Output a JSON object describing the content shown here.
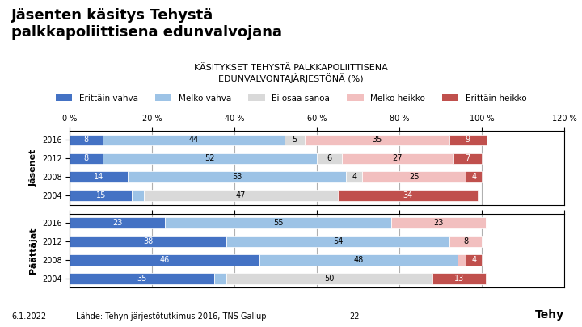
{
  "title": "Jäsenten käsitys Tehystä\npalkkapoliittisena edunvalvojana",
  "subtitle": "KÄSITYKSET TEHYSTÄ PALKKAPOLIITTISENA\nEDUNVALVONTAJÄRJESTÖNÄ (%)",
  "annotations": [
    "6.1.2022",
    "Lähde: Tehyn järjestötutkimus 2016, TNS Gallup",
    "22",
    "Tehy"
  ],
  "chart_data": [
    {
      "type": "bar",
      "orientation": "horizontal",
      "stacked": true,
      "title": "Jäsenet",
      "categories": [
        "2016",
        "2012",
        "2008",
        "2004"
      ],
      "xlim": [
        0,
        120
      ],
      "xticks": [
        {
          "value": 0,
          "label": "0 %"
        },
        {
          "value": 20,
          "label": "20 %"
        },
        {
          "value": 40,
          "label": "40 %"
        },
        {
          "value": 60,
          "label": "60 %"
        },
        {
          "value": 80,
          "label": "80 %"
        },
        {
          "value": 100,
          "label": "100 %"
        },
        {
          "value": 120,
          "label": "120 %"
        }
      ],
      "grid": true,
      "legend": "upper center",
      "data_labels": true,
      "series": [
        {
          "name": "Erittäin vahva",
          "color": "#4472C4",
          "values": [
            8,
            8,
            14,
            15
          ],
          "value_labels": [
            "8",
            "8",
            "14",
            "15"
          ]
        },
        {
          "name": "Melko vahva",
          "color": "#9DC3E6",
          "values": [
            44,
            52,
            53,
            3
          ],
          "value_labels": [
            "44",
            "52",
            "53",
            null
          ]
        },
        {
          "name": "Ei osaa sanoa",
          "color": "#D9D9D9",
          "values": [
            5,
            6,
            4,
            47
          ],
          "value_labels": [
            "5",
            "6",
            "4",
            "47"
          ]
        },
        {
          "name": "Melko heikko",
          "color": "#F2BFBF",
          "values": [
            35,
            27,
            25,
            0
          ],
          "value_labels": [
            "35",
            "27",
            "25",
            null
          ]
        },
        {
          "name": "Erittäin heikko",
          "color": "#C0504D",
          "values": [
            9,
            7,
            4,
            34
          ],
          "value_labels": [
            "9",
            "7",
            "4",
            "34"
          ]
        }
      ]
    },
    {
      "type": "bar",
      "orientation": "horizontal",
      "stacked": true,
      "title": "Päättäjat",
      "categories": [
        "2016",
        "2012",
        "2008",
        "2004"
      ],
      "xlim": [
        0,
        120
      ],
      "xticks": [
        {
          "value": 0,
          "label": "0 %"
        },
        {
          "value": 20,
          "label": "20 %"
        },
        {
          "value": 40,
          "label": "40 %"
        },
        {
          "value": 60,
          "label": "60 %"
        },
        {
          "value": 80,
          "label": "80 %"
        },
        {
          "value": 100,
          "label": "100 %"
        },
        {
          "value": 120,
          "label": "120 %"
        }
      ],
      "grid": true,
      "data_labels": true,
      "tick_labels": "y",
      "series": [
        {
          "name": "Erittäin vahva",
          "color": "#4472C4",
          "values": [
            23,
            38,
            46,
            35
          ],
          "value_labels": [
            "23",
            "38",
            "46",
            "35"
          ]
        },
        {
          "name": "Melko vahva",
          "color": "#9DC3E6",
          "values": [
            55,
            54,
            48,
            3
          ],
          "value_labels": [
            "55",
            "54",
            "48",
            null
          ]
        },
        {
          "name": "Ei osaa sanoa",
          "color": "#D9D9D9",
          "values": [
            0,
            0,
            0,
            50
          ],
          "value_labels": [
            null,
            null,
            null,
            "50"
          ]
        },
        {
          "name": "Melko heikko",
          "color": "#F2BFBF",
          "values": [
            23,
            8,
            2,
            0
          ],
          "value_labels": [
            "23",
            "8",
            null,
            null
          ]
        },
        {
          "name": "Erittäin heikko",
          "color": "#C0504D",
          "values": [
            0,
            0,
            4,
            13
          ],
          "value_labels": [
            null,
            null,
            "4",
            "13"
          ]
        }
      ]
    }
  ]
}
